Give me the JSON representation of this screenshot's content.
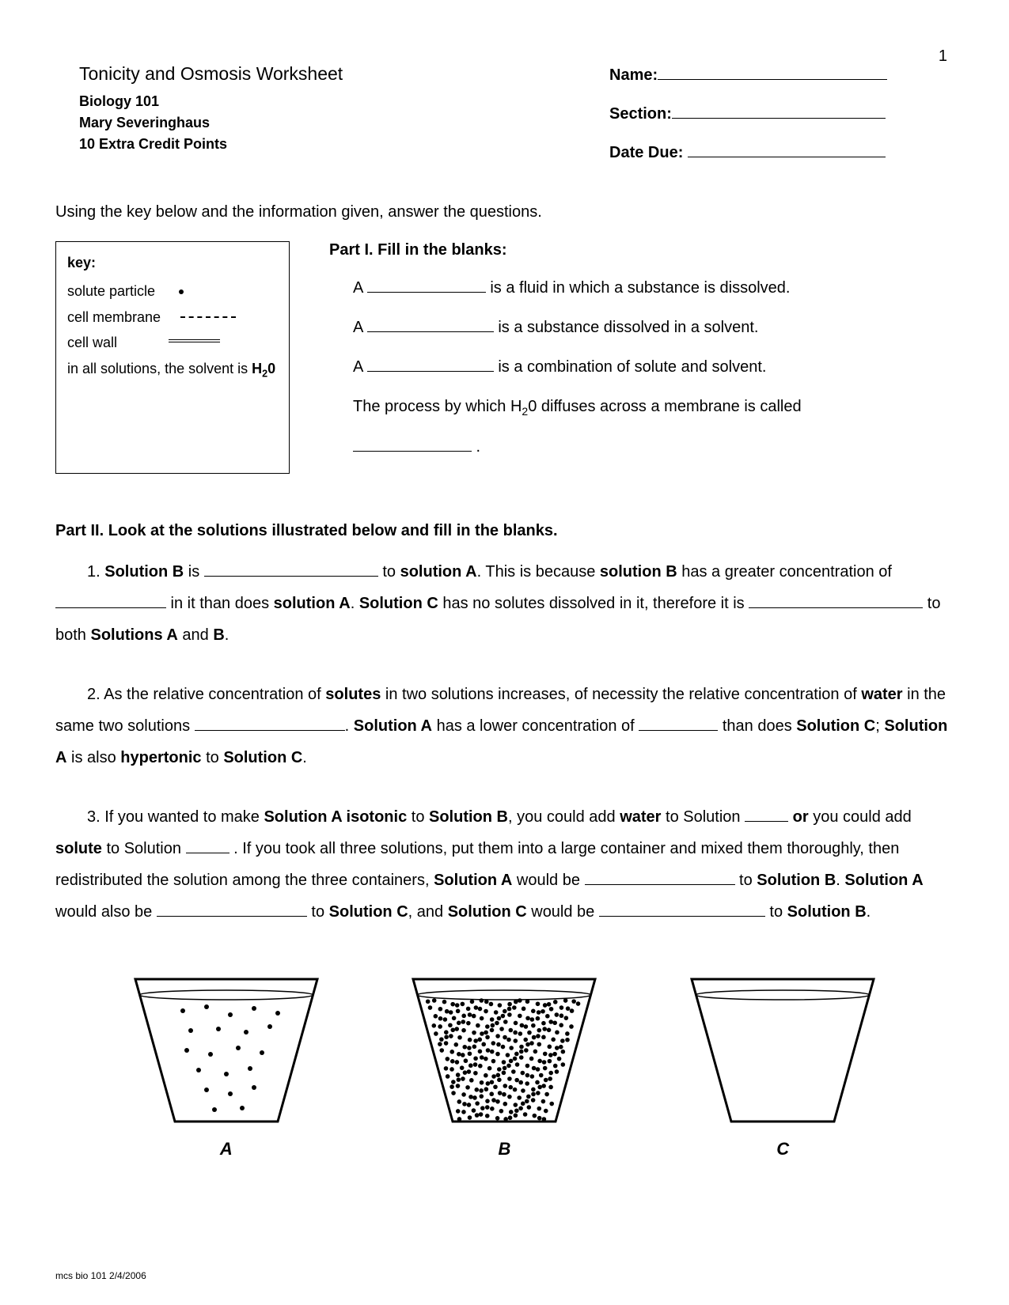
{
  "page_number": "1",
  "title": "Tonicity and Osmosis Worksheet",
  "course": "Biology 101",
  "instructor": "Mary Severinghaus",
  "credit": "10 Extra Credit Points",
  "fields": {
    "name_label": "Name:",
    "section_label": "Section:",
    "date_label": "Date Due:"
  },
  "instructions": "Using the key below and the information given, answer the questions.",
  "key": {
    "title": "key:",
    "row1": "solute particle",
    "row2": "cell membrane",
    "row3": "cell wall",
    "row4_pre": "in all solutions, the solvent is ",
    "row4_bold": "H",
    "row4_sub": "2",
    "row4_end": "0"
  },
  "part1": {
    "heading": "Part I.   Fill in the blanks:",
    "q1_pre": "A ",
    "q1_post": " is a fluid in which a substance is dissolved.",
    "q2_pre": "A ",
    "q2_post": " is a substance dissolved in a solvent.",
    "q3_pre": "A ",
    "q3_post": " is a combination of solute and solvent.",
    "q4_pre": "The process by which H",
    "q4_sub": "2",
    "q4_mid": "0 diffuses across a membrane is called",
    "q4_end": " ."
  },
  "part2": {
    "heading": "Part II.   Look at the solutions illustrated below and fill in the blanks.",
    "q1_a": "1.   ",
    "q1_b": "Solution B",
    "q1_c": " is ",
    "q1_d": " to ",
    "q1_e": "solution A",
    "q1_f": ". This is because  ",
    "q1_g": "solution B",
    "q1_h": " has a greater concentration of ",
    "q1_i": " in it than does ",
    "q1_j": "solution A",
    "q1_k": ". ",
    "q1_l": "Solution C",
    "q1_m": " has no solutes dissolved in it, therefore it is ",
    "q1_n": " to both ",
    "q1_o": "Solutions A",
    "q1_p": " and ",
    "q1_q": "B",
    "q1_r": ".",
    "q2_a": "2.   As the relative concentration of ",
    "q2_b": "solutes",
    "q2_c": " in two solutions increases, of necessity the relative concentration of ",
    "q2_d": "water",
    "q2_e": " in the same two solutions ",
    "q2_f": ". ",
    "q2_g": "Solution A",
    "q2_h": " has a lower concentration of ",
    "q2_i": " than does ",
    "q2_j": "Solution C",
    "q2_k": "; ",
    "q2_l": "Solution A",
    "q2_m": " is also ",
    "q2_n": "hypertonic",
    "q2_o": " to ",
    "q2_p": "Solution C",
    "q2_q": ".",
    "q3_a": "3.   If you wanted to make ",
    "q3_b": "Solution A isotonic",
    "q3_c": " to ",
    "q3_d": "Solution B",
    "q3_e": ", you could add ",
    "q3_f": "water",
    "q3_g": " to Solution ",
    "q3_h": " ",
    "q3_i": "or",
    "q3_j": " you could add ",
    "q3_k": "solute",
    "q3_l": " to Solution ",
    "q3_m": " . If you took all three solutions, put them into a large container and mixed them thoroughly, then redistributed the solution among the three containers, ",
    "q3_n": "Solution A",
    "q3_o": " would be ",
    "q3_p": " to ",
    "q3_q": "Solution B",
    "q3_r": ". ",
    "q3_s": "Solution A",
    "q3_t": " would also be ",
    "q3_u": " to ",
    "q3_v": "Solution C",
    "q3_w": ", and ",
    "q3_x": "Solution C",
    "q3_y": " would be ",
    "q3_z": " to ",
    "q3_aa": "Solution B",
    "q3_ab": "."
  },
  "beakers": {
    "a": "A",
    "b": "B",
    "c": "C"
  },
  "footer": "mcs bio 101 2/4/2006"
}
